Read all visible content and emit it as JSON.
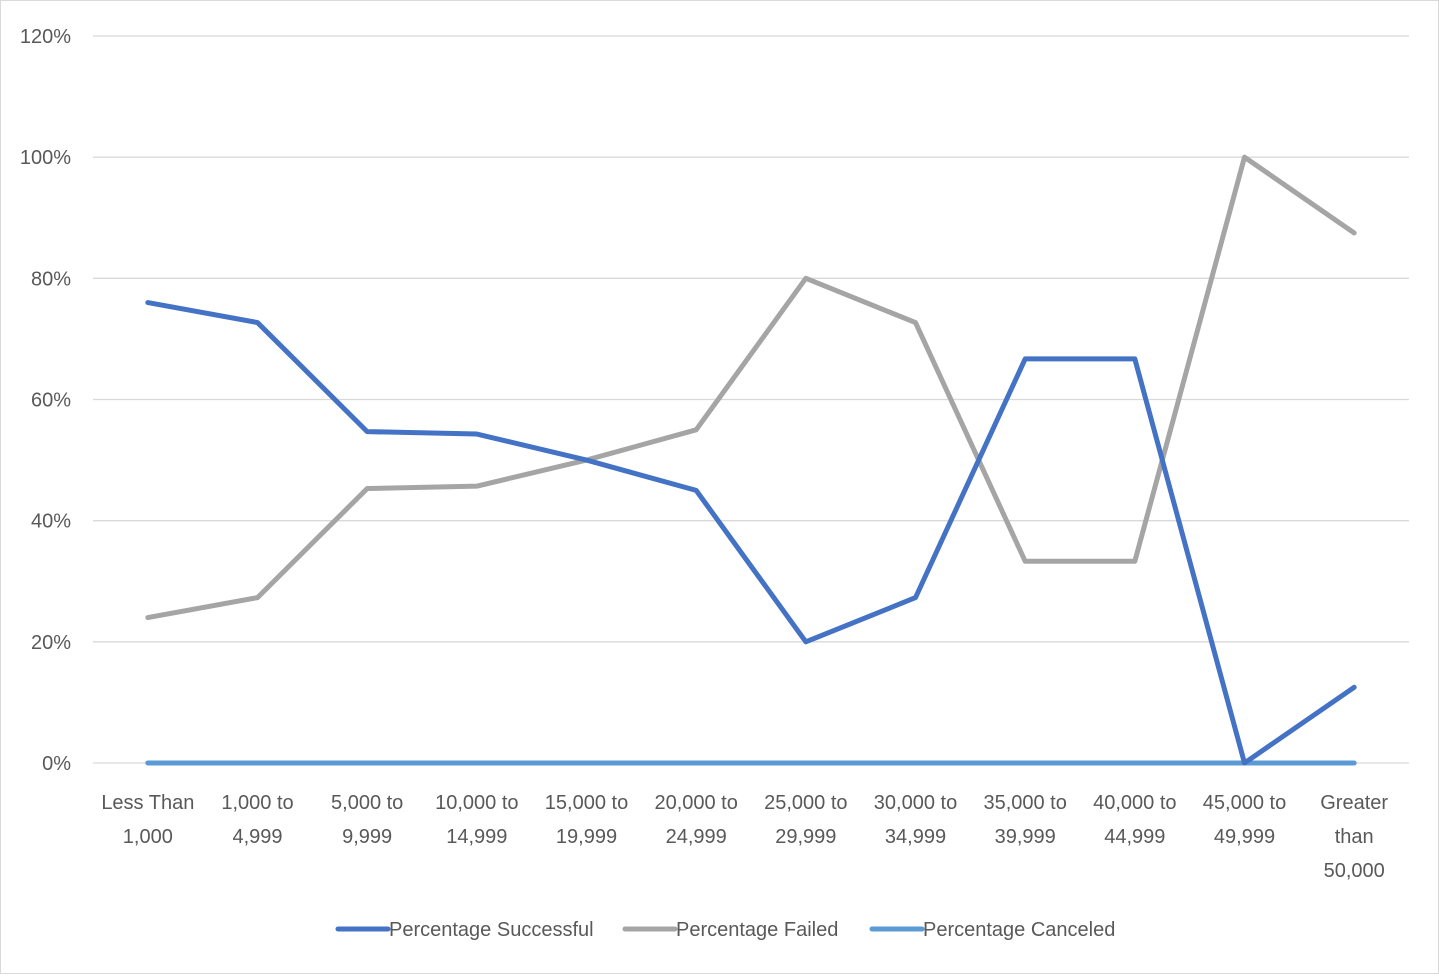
{
  "chart_data": {
    "type": "line",
    "title": "",
    "xlabel": "",
    "ylabel": "",
    "ylim": [
      0,
      1.2
    ],
    "yticks": [
      "0%",
      "20%",
      "40%",
      "60%",
      "80%",
      "100%",
      "120%"
    ],
    "yticks_values": [
      0,
      0.2,
      0.4,
      0.6,
      0.8,
      1.0,
      1.2
    ],
    "grid": "horizontal",
    "legend_position": "bottom",
    "categories": [
      [
        "Less Than",
        "1,000"
      ],
      [
        "1,000 to",
        "4,999"
      ],
      [
        "5,000 to",
        "9,999"
      ],
      [
        "10,000 to",
        "14,999"
      ],
      [
        "15,000 to",
        "19,999"
      ],
      [
        "20,000 to",
        "24,999"
      ],
      [
        "25,000 to",
        "29,999"
      ],
      [
        "30,000 to",
        "34,999"
      ],
      [
        "35,000 to",
        "39,999"
      ],
      [
        "40,000 to",
        "44,999"
      ],
      [
        "45,000 to",
        "49,999"
      ],
      [
        "Greater",
        "than",
        "50,000"
      ]
    ],
    "series": [
      {
        "name": "Percentage Successful",
        "color": "#4472c4",
        "values": [
          0.76,
          0.727,
          0.547,
          0.543,
          0.5,
          0.45,
          0.2,
          0.273,
          0.667,
          0.667,
          0.0,
          0.125
        ]
      },
      {
        "name": "Percentage Failed",
        "color": "#a5a5a5",
        "values": [
          0.24,
          0.273,
          0.453,
          0.457,
          0.5,
          0.55,
          0.8,
          0.727,
          0.333,
          0.333,
          1.0,
          0.875
        ]
      },
      {
        "name": "Percentage Canceled",
        "color": "#5b9bd5",
        "values": [
          0,
          0,
          0,
          0,
          0,
          0,
          0,
          0,
          0,
          0,
          0,
          0
        ]
      }
    ]
  }
}
